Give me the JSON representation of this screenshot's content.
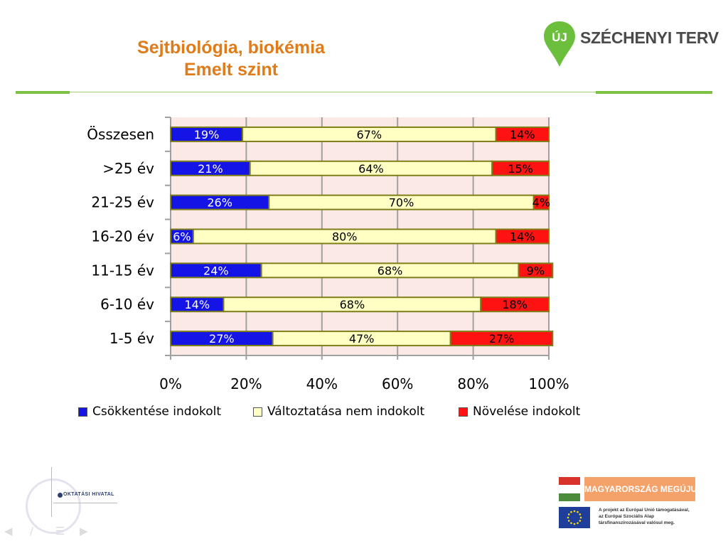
{
  "header": {
    "title_line1": "Sejtbiológia, biokémia",
    "title_line2": "Emelt szint",
    "logo_prefix": "ÚJ",
    "logo_brand": "SZÉCHENYI TERV"
  },
  "colors": {
    "title": "#e07b1a",
    "rule": "#7cc243",
    "plot_bg": "#fbe9e5",
    "grid": "#a0a0a0"
  },
  "chart_data": {
    "type": "bar",
    "orientation": "horizontal",
    "stacked": true,
    "percent_stacked": true,
    "categories": [
      "Összesen",
      ">25 év",
      "21-25 év",
      "16-20 év",
      "11-15 év",
      "6-10 év",
      "1-5 év"
    ],
    "series": [
      {
        "name": "Csökkentése indokolt",
        "color": "#1414e6",
        "label_color": "#ffffff",
        "values": [
          19,
          21,
          26,
          6,
          24,
          14,
          27
        ],
        "labels": [
          "19%",
          "21%",
          "26%",
          "6%",
          "24%",
          "14%",
          "27%"
        ]
      },
      {
        "name": "Változtatása nem indokolt",
        "color": "#ffffc4",
        "label_color": "#000000",
        "values": [
          67,
          64,
          70,
          80,
          68,
          68,
          47
        ],
        "labels": [
          "67%",
          "64%",
          "70%",
          "80%",
          "68%",
          "68%",
          "47%"
        ]
      },
      {
        "name": "Növelése indokolt",
        "color": "#ff1212",
        "label_color": "#000000",
        "values": [
          14,
          15,
          4,
          14,
          9,
          18,
          27
        ],
        "labels": [
          "14%",
          "15%",
          "4%",
          "14%",
          "9%",
          "18%",
          "27%"
        ]
      }
    ],
    "xlim": [
      0,
      100
    ],
    "x_ticks": [
      "0%",
      "20%",
      "40%",
      "60%",
      "80%",
      "100%"
    ],
    "grid": true,
    "legend_position": "bottom"
  },
  "footer": {
    "institution": "OKTATÁSI HIVATAL",
    "campaign": "MAGYARORSZÁG MEGÚJUL",
    "eu_line1": "A projekt az Európai Unió támogatásával,",
    "eu_line2": "az Európai Szociális Alap",
    "eu_line3": "társfinanszírozásával valósul meg.",
    "nav_icons": [
      "arrow-left-icon",
      "slash-icon",
      "menu-icon",
      "arrow-right-icon"
    ]
  }
}
